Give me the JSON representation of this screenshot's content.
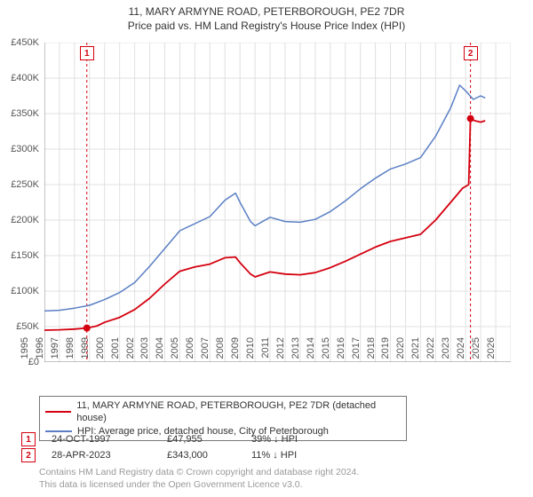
{
  "title": "11, MARY ARMYNE ROAD, PETERBOROUGH, PE2 7DR",
  "subtitle": "Price paid vs. HM Land Registry's House Price Index (HPI)",
  "chart": {
    "type": "line",
    "background_color": "#ffffff",
    "grid_color": "#e0e0e0",
    "axis_color": "#888888",
    "xlim": [
      1995,
      2026
    ],
    "ylim": [
      0,
      450000
    ],
    "ytick_step": 50000,
    "ytick_labels": [
      "£0",
      "£50K",
      "£100K",
      "£150K",
      "£200K",
      "£250K",
      "£300K",
      "£350K",
      "£400K",
      "£450K"
    ],
    "xtick_years": [
      1995,
      1996,
      1997,
      1998,
      1999,
      2000,
      2001,
      2002,
      2003,
      2004,
      2005,
      2006,
      2007,
      2008,
      2009,
      2010,
      2011,
      2012,
      2013,
      2014,
      2015,
      2016,
      2017,
      2018,
      2019,
      2020,
      2021,
      2022,
      2023,
      2024,
      2025,
      2026
    ],
    "series": [
      {
        "name": "11, MARY ARMYNE ROAD, PETERBOROUGH, PE2 7DR (detached house)",
        "color": "#d4000f",
        "line_width": 1.8,
        "points": [
          [
            1995,
            45000
          ],
          [
            1996,
            45500
          ],
          [
            1997,
            46500
          ],
          [
            1997.82,
            47955
          ],
          [
            1998.5,
            51000
          ],
          [
            1999,
            56000
          ],
          [
            2000,
            63000
          ],
          [
            2001,
            74000
          ],
          [
            2002,
            90000
          ],
          [
            2003,
            110000
          ],
          [
            2004,
            128000
          ],
          [
            2005,
            134000
          ],
          [
            2006,
            138000
          ],
          [
            2007,
            147000
          ],
          [
            2007.7,
            148000
          ],
          [
            2008,
            140000
          ],
          [
            2008.7,
            124000
          ],
          [
            2009,
            120000
          ],
          [
            2010,
            127000
          ],
          [
            2011,
            124000
          ],
          [
            2012,
            123000
          ],
          [
            2013,
            126000
          ],
          [
            2014,
            133000
          ],
          [
            2015,
            142000
          ],
          [
            2016,
            152000
          ],
          [
            2017,
            162000
          ],
          [
            2018,
            170000
          ],
          [
            2019,
            175000
          ],
          [
            2020,
            180000
          ],
          [
            2021,
            200000
          ],
          [
            2022,
            225000
          ],
          [
            2022.8,
            245000
          ],
          [
            2023.2,
            250000
          ],
          [
            2023.32,
            343000
          ],
          [
            2023.6,
            340000
          ],
          [
            2024,
            338000
          ],
          [
            2024.3,
            340000
          ]
        ]
      },
      {
        "name": "HPI: Average price, detached house, City of Peterborough",
        "color": "#5a7fc4",
        "line_width": 1.5,
        "points": [
          [
            1995,
            72000
          ],
          [
            1996,
            73000
          ],
          [
            1997,
            76000
          ],
          [
            1998,
            80000
          ],
          [
            1999,
            88000
          ],
          [
            2000,
            98000
          ],
          [
            2001,
            112000
          ],
          [
            2002,
            135000
          ],
          [
            2003,
            160000
          ],
          [
            2004,
            185000
          ],
          [
            2005,
            195000
          ],
          [
            2006,
            205000
          ],
          [
            2007,
            228000
          ],
          [
            2007.7,
            238000
          ],
          [
            2008,
            225000
          ],
          [
            2008.7,
            198000
          ],
          [
            2009,
            192000
          ],
          [
            2010,
            204000
          ],
          [
            2011,
            198000
          ],
          [
            2012,
            197000
          ],
          [
            2013,
            201000
          ],
          [
            2014,
            212000
          ],
          [
            2015,
            227000
          ],
          [
            2016,
            244000
          ],
          [
            2017,
            259000
          ],
          [
            2018,
            272000
          ],
          [
            2019,
            279000
          ],
          [
            2020,
            288000
          ],
          [
            2021,
            318000
          ],
          [
            2022,
            358000
          ],
          [
            2022.6,
            390000
          ],
          [
            2023,
            382000
          ],
          [
            2023.5,
            370000
          ],
          [
            2024,
            375000
          ],
          [
            2024.3,
            372000
          ]
        ]
      }
    ],
    "marker_points": [
      {
        "idx": "1",
        "x": 1997.82,
        "y": 47955,
        "color": "#d4000f",
        "badge_x": 1997.82,
        "badge_y_top": true
      },
      {
        "idx": "2",
        "x": 2023.32,
        "y": 343000,
        "color": "#d4000f",
        "badge_x": 2023.32,
        "badge_y_top": true
      }
    ]
  },
  "legend": {
    "series1_color": "#d4000f",
    "series1_label": "11, MARY ARMYNE ROAD, PETERBOROUGH, PE2 7DR (detached house)",
    "series2_color": "#5a7fc4",
    "series2_label": "HPI: Average price, detached house, City of Peterborough"
  },
  "markers": [
    {
      "idx": "1",
      "color": "#d4000f",
      "date": "24-OCT-1997",
      "price": "£47,955",
      "pct": "39% ↓ HPI"
    },
    {
      "idx": "2",
      "color": "#d4000f",
      "date": "28-APR-2023",
      "price": "£343,000",
      "pct": "11% ↓ HPI"
    }
  ],
  "footer_line1": "Contains HM Land Registry data © Crown copyright and database right 2024.",
  "footer_line2": "This data is licensed under the Open Government Licence v3.0."
}
